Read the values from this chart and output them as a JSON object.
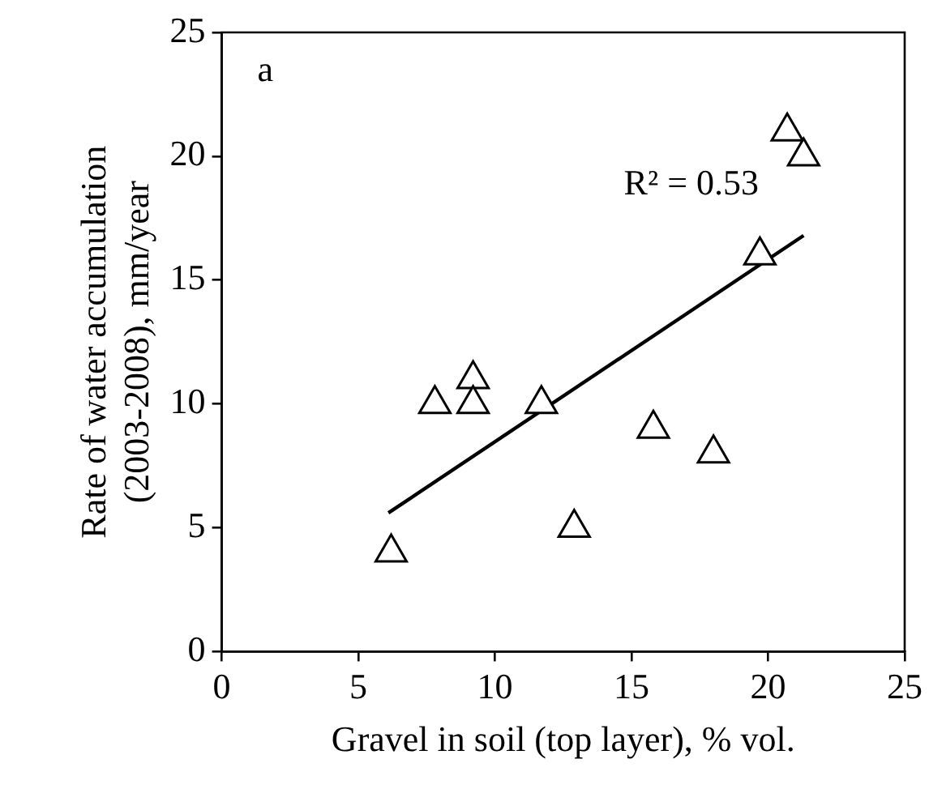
{
  "chart_data": {
    "type": "scatter",
    "xlabel": "Gravel in soil (top layer), % vol.",
    "ylabel": "Rate of water accumulation (2003-2008), mm/year",
    "xlim": [
      0,
      25
    ],
    "xticks": [
      0,
      5,
      10,
      15,
      20,
      25
    ],
    "ylim": [
      0,
      25
    ],
    "yticks": [
      0,
      5,
      10,
      15,
      20,
      25
    ],
    "grid": false,
    "legend": false,
    "marker": "triangle",
    "annotations": [
      "a",
      "R² = 0.53"
    ],
    "series": [
      {
        "color": "#000000",
        "x": [
          6.2,
          7.8,
          9.2,
          9.2,
          11.7,
          12.9,
          15.8,
          18.0,
          19.7,
          20.7,
          21.3
        ],
        "values": [
          4,
          10,
          11,
          10,
          10,
          5,
          9,
          8,
          16,
          21,
          20
        ]
      },
      {
        "type": "line",
        "marker": "none",
        "color": "#000000",
        "x": [
          6.1,
          21.3
        ],
        "values": [
          5.6,
          16.8
        ]
      }
    ]
  }
}
